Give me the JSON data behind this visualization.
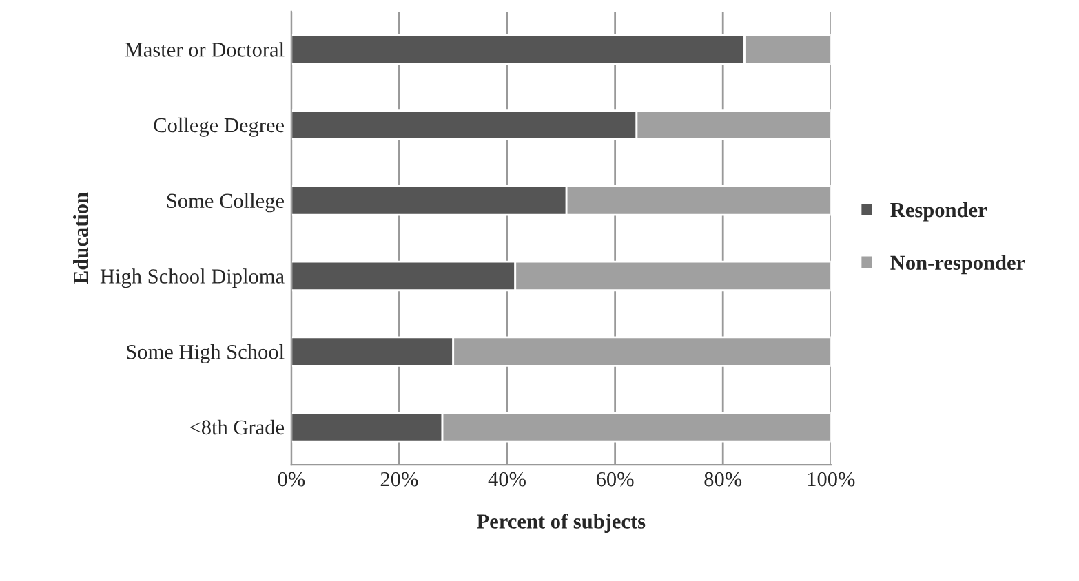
{
  "chart_data": {
    "type": "bar",
    "orientation": "horizontal",
    "stacked": true,
    "categories": [
      "Master or Doctoral",
      "College Degree",
      "Some College",
      "High School Diploma",
      "Some High School",
      "<8th Grade"
    ],
    "series": [
      {
        "name": "Responder",
        "color": "#555555",
        "values": [
          84,
          64,
          51,
          41.5,
          30,
          28
        ]
      },
      {
        "name": "Non-responder",
        "color": "#a0a0a0",
        "values": [
          16,
          36,
          49,
          58.5,
          70,
          72
        ]
      }
    ],
    "xlabel": "Percent of subjects",
    "ylabel": "Education",
    "xlim": [
      0,
      100
    ],
    "xticks": [
      {
        "value": 0,
        "label": "0%"
      },
      {
        "value": 20,
        "label": "20%"
      },
      {
        "value": 40,
        "label": "40%"
      },
      {
        "value": 60,
        "label": "60%"
      },
      {
        "value": 80,
        "label": "80%"
      },
      {
        "value": 100,
        "label": "100%"
      }
    ],
    "grid": "x",
    "legend": "right"
  }
}
